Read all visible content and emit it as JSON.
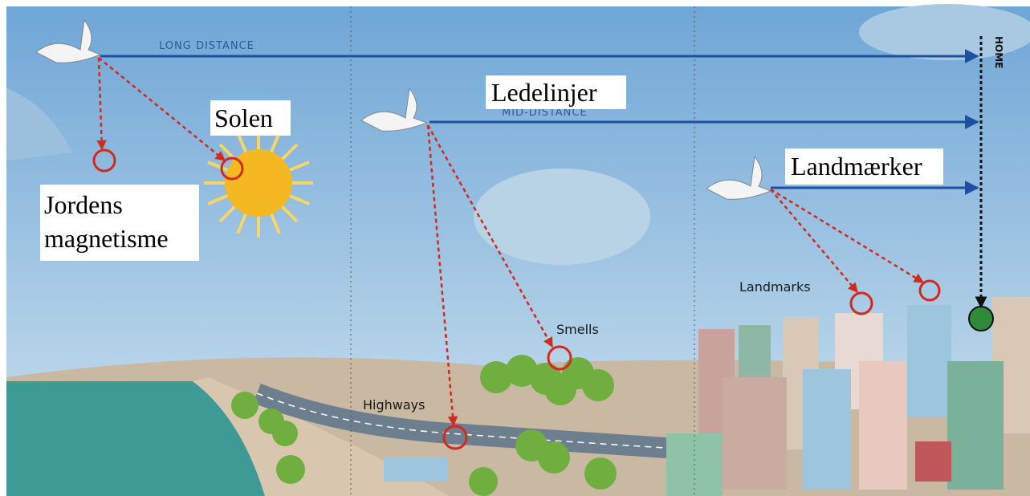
{
  "labels": {
    "long_distance": "LONG DISTANCE",
    "mid_distance": "MID-DISTANCE",
    "home": "HOME",
    "ledelinjer": "Ledelinjer",
    "solen": "Solen",
    "jordens": [
      "Jordens",
      "magnetisme"
    ],
    "landmaerker": "Landmærker",
    "landmarks": "Landmarks",
    "smells": "Smells",
    "highways": "Highways"
  }
}
